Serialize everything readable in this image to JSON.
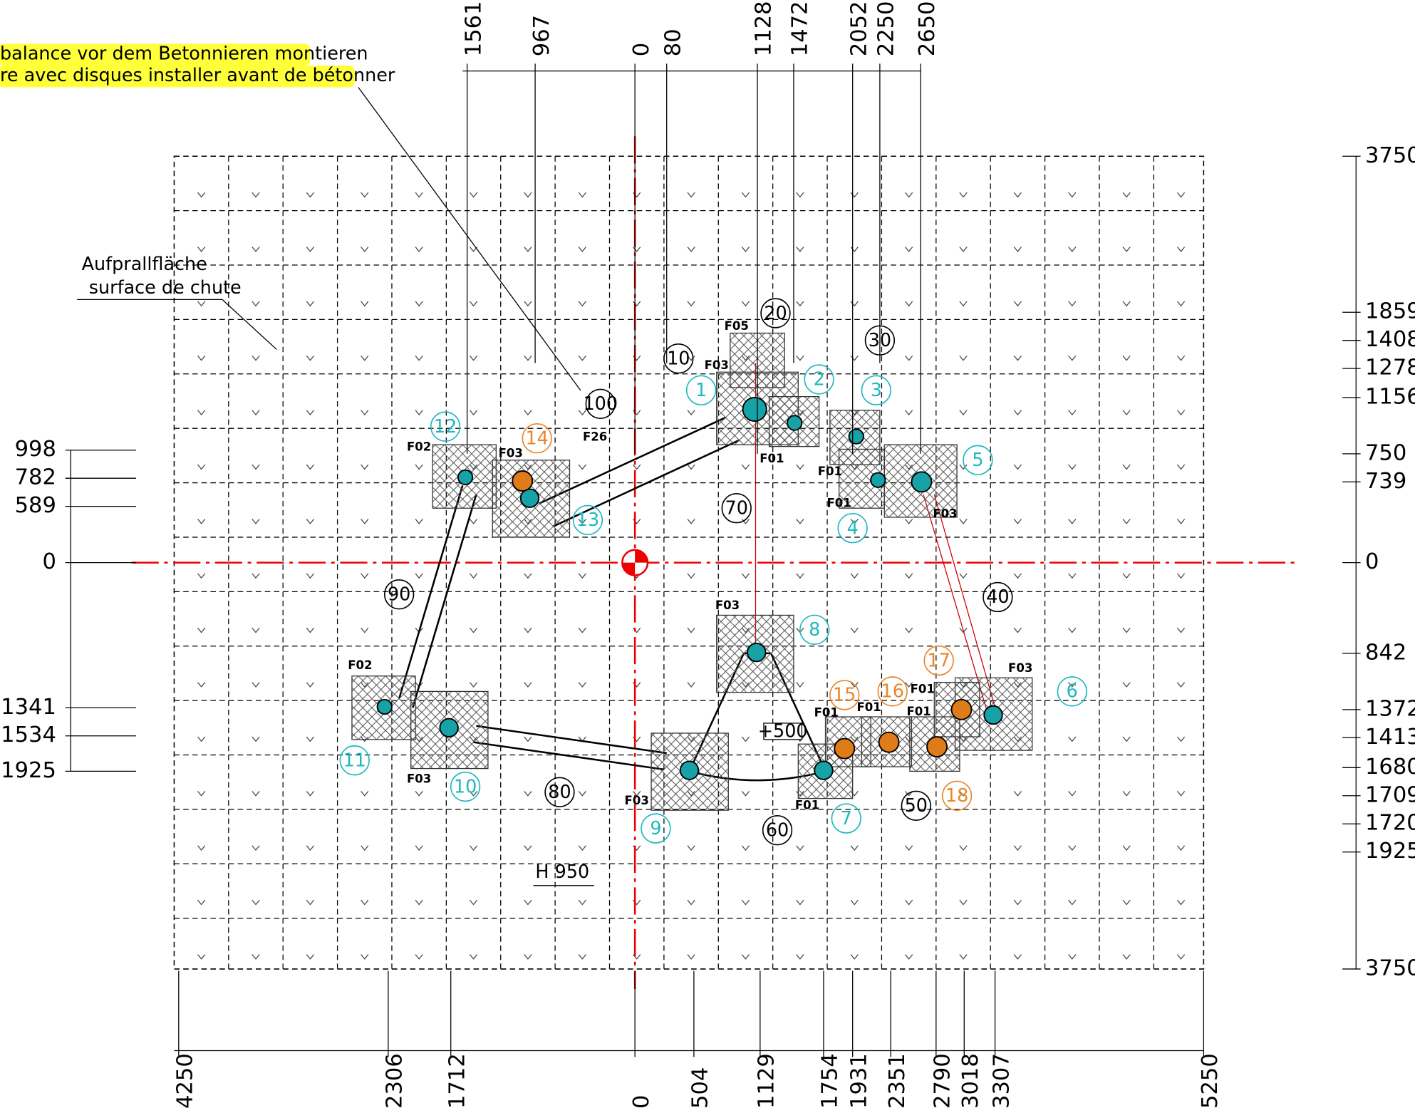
{
  "notes": [
    "balance vor dem Betonnieren montieren",
    "re avec disques installer avant de bétonner"
  ],
  "impact_label": [
    "Aufprallfläche",
    "surface de chute"
  ],
  "dims_top": [
    "1561",
    "967",
    "0",
    "80",
    "1128",
    "1472",
    "2052",
    "2250",
    "2650"
  ],
  "dims_right": [
    "3750",
    "1859",
    "1408",
    "1278",
    "1156",
    "750",
    "739",
    "0",
    "842",
    "1372",
    "1413",
    "1680",
    "1709",
    "1720",
    "1925",
    "3750"
  ],
  "dims_left": [
    "998",
    "782",
    "589",
    "0",
    "1341",
    "1534",
    "1925"
  ],
  "dims_bottom": [
    "4250",
    "2306",
    "1712",
    "0",
    "504",
    "1129",
    "1754",
    "1931",
    "2351",
    "2790",
    "3018",
    "3307",
    "5250"
  ],
  "element_tags": [
    "10",
    "20",
    "30",
    "40",
    "50",
    "60",
    "70",
    "80",
    "90",
    "100"
  ],
  "post_tags": [
    "1",
    "2",
    "3",
    "4",
    "5",
    "6",
    "7",
    "8",
    "9",
    "10",
    "11",
    "12",
    "13"
  ],
  "anchor_tags": [
    "14",
    "15",
    "16",
    "17",
    "18"
  ],
  "foundation_labels": [
    "F05",
    "F03",
    "F26",
    "F02",
    "F03",
    "F01",
    "F01",
    "F01",
    "F03",
    "F03",
    "F03",
    "F01",
    "F01",
    "F01",
    "F01",
    "F02",
    "F03",
    "F03",
    "F01"
  ],
  "step_label": "+500",
  "height_label": "H 950"
}
